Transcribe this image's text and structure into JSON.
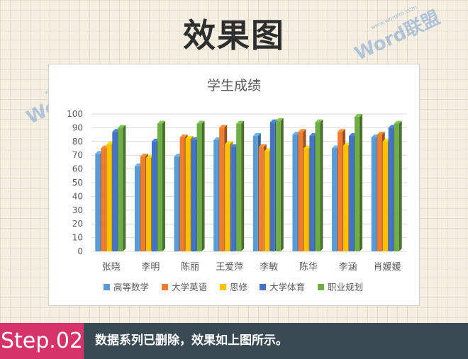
{
  "headline": "效果图",
  "watermark": {
    "text": "Word联盟",
    "url": "www.wordlm.com"
  },
  "footer": {
    "step": "Step.02",
    "caption": "数据系列已删除，效果如上图所示。"
  },
  "colors": {
    "高等数学": "#5b9bd5",
    "大学英语": "#ed7d31",
    "思修": "#ffc000",
    "大学体育": "#4472c4",
    "职业规划": "#70ad47"
  },
  "chart_data": {
    "type": "bar",
    "title": "学生成绩",
    "xlabel": "",
    "ylabel": "",
    "ylim": [
      0,
      100
    ],
    "yticks": [
      0,
      10,
      20,
      30,
      40,
      50,
      60,
      70,
      80,
      90,
      100
    ],
    "grid": true,
    "legend_position": "bottom",
    "categories": [
      "张晓",
      "李明",
      "陈丽",
      "王爱萍",
      "李敏",
      "陈华",
      "李涵",
      "肖媛媛"
    ],
    "series": [
      {
        "name": "高等数学",
        "values": [
          71,
          62,
          69,
          81,
          84,
          85,
          75,
          83
        ]
      },
      {
        "name": "大学英语",
        "values": [
          75,
          69,
          83,
          90,
          76,
          87,
          87,
          85
        ]
      },
      {
        "name": "思修",
        "values": [
          78,
          68,
          82,
          78,
          73,
          75,
          77,
          80
        ]
      },
      {
        "name": "大学体育",
        "values": [
          87,
          80,
          81,
          76,
          94,
          84,
          84,
          90
        ]
      },
      {
        "name": "职业规划",
        "values": [
          90,
          93,
          93,
          93,
          95,
          94,
          98,
          93
        ]
      }
    ]
  }
}
